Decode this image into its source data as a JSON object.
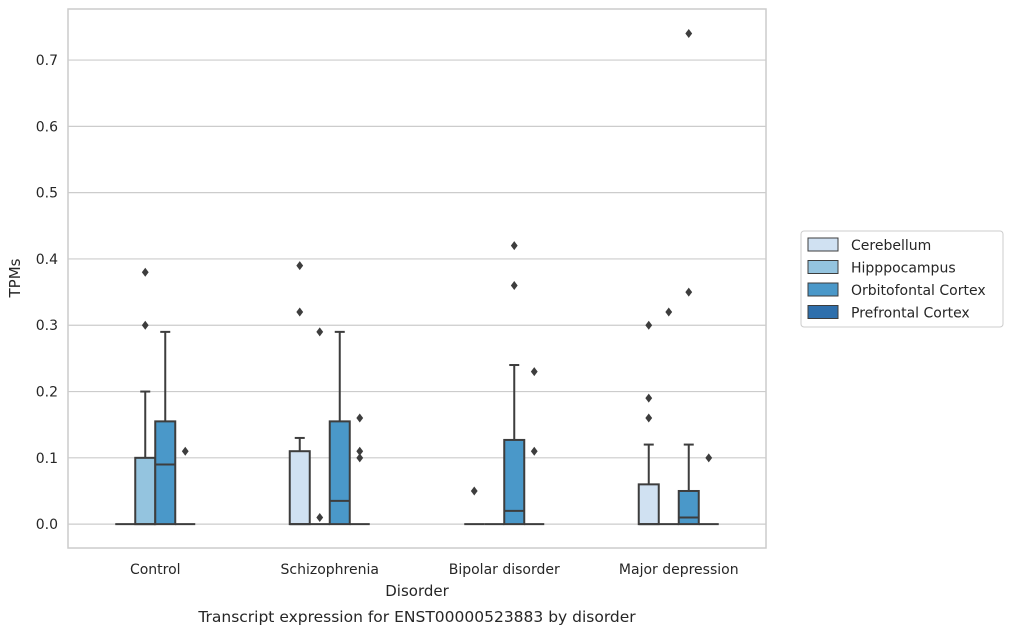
{
  "chart_data": {
    "type": "box",
    "caption": "Transcript expression for ENST00000523883 by disorder",
    "xlabel": "Disorder",
    "ylabel": "TPMs",
    "ylim": [
      -0.036,
      0.777
    ],
    "yticks": [
      0.0,
      0.1,
      0.2,
      0.3,
      0.4,
      0.5,
      0.6,
      0.7
    ],
    "ytick_labels": [
      "0.0",
      "0.1",
      "0.2",
      "0.3",
      "0.4",
      "0.5",
      "0.6",
      "0.7"
    ],
    "grid": "horizontal",
    "legend_position": "right",
    "categories": [
      "Control",
      "Schizophrenia",
      "Bipolar disorder",
      "Major depression"
    ],
    "series": [
      {
        "name": "Cerebellum",
        "color": "#d0e1f2",
        "boxes": [
          {
            "q1": 0.0,
            "median": 0.0,
            "q3": 0.0,
            "whislo": 0.0,
            "whishi": 0.0,
            "fliers": []
          },
          {
            "q1": 0.0,
            "median": 0.0,
            "q3": 0.11,
            "whislo": 0.0,
            "whishi": 0.13,
            "fliers": [
              0.32,
              0.39
            ]
          },
          {
            "q1": 0.0,
            "median": 0.0,
            "q3": 0.0,
            "whislo": 0.0,
            "whishi": 0.0,
            "fliers": [
              0.05
            ]
          },
          {
            "q1": 0.0,
            "median": 0.0,
            "q3": 0.06,
            "whislo": 0.0,
            "whishi": 0.12,
            "fliers": [
              0.16,
              0.19,
              0.3
            ]
          }
        ]
      },
      {
        "name": "Hipppocampus",
        "color": "#94c4df",
        "boxes": [
          {
            "q1": 0.0,
            "median": 0.0,
            "q3": 0.1,
            "whislo": 0.0,
            "whishi": 0.2,
            "fliers": [
              0.3,
              0.38
            ]
          },
          {
            "q1": 0.0,
            "median": 0.0,
            "q3": 0.0,
            "whislo": 0.0,
            "whishi": 0.0,
            "fliers": [
              0.01,
              0.29
            ]
          },
          {
            "q1": 0.0,
            "median": 0.0,
            "q3": 0.0,
            "whislo": 0.0,
            "whishi": 0.0,
            "fliers": []
          },
          {
            "q1": 0.0,
            "median": 0.0,
            "q3": 0.0,
            "whislo": 0.0,
            "whishi": 0.0,
            "fliers": [
              0.32
            ]
          }
        ]
      },
      {
        "name": "Orbitofontal Cortex",
        "color": "#4a98c9",
        "boxes": [
          {
            "q1": 0.0,
            "median": 0.09,
            "q3": 0.155,
            "whislo": 0.0,
            "whishi": 0.29,
            "fliers": []
          },
          {
            "q1": 0.0,
            "median": 0.035,
            "q3": 0.155,
            "whislo": 0.0,
            "whishi": 0.29,
            "fliers": []
          },
          {
            "q1": 0.0,
            "median": 0.02,
            "q3": 0.127,
            "whislo": 0.0,
            "whishi": 0.24,
            "fliers": [
              0.36,
              0.42
            ]
          },
          {
            "q1": 0.0,
            "median": 0.01,
            "q3": 0.05,
            "whislo": 0.0,
            "whishi": 0.12,
            "fliers": [
              0.35,
              0.74
            ]
          }
        ]
      },
      {
        "name": "Prefrontal Cortex",
        "color": "#2e6fac",
        "boxes": [
          {
            "q1": 0.0,
            "median": 0.0,
            "q3": 0.0,
            "whislo": 0.0,
            "whishi": 0.0,
            "fliers": [
              0.11
            ]
          },
          {
            "q1": 0.0,
            "median": 0.0,
            "q3": 0.0,
            "whislo": 0.0,
            "whishi": 0.0,
            "fliers": [
              0.1,
              0.11,
              0.16
            ]
          },
          {
            "q1": 0.0,
            "median": 0.0,
            "q3": 0.0,
            "whislo": 0.0,
            "whishi": 0.0,
            "fliers": [
              0.11,
              0.23
            ]
          },
          {
            "q1": 0.0,
            "median": 0.0,
            "q3": 0.0,
            "whislo": 0.0,
            "whishi": 0.0,
            "fliers": [
              0.1
            ]
          }
        ]
      }
    ]
  }
}
